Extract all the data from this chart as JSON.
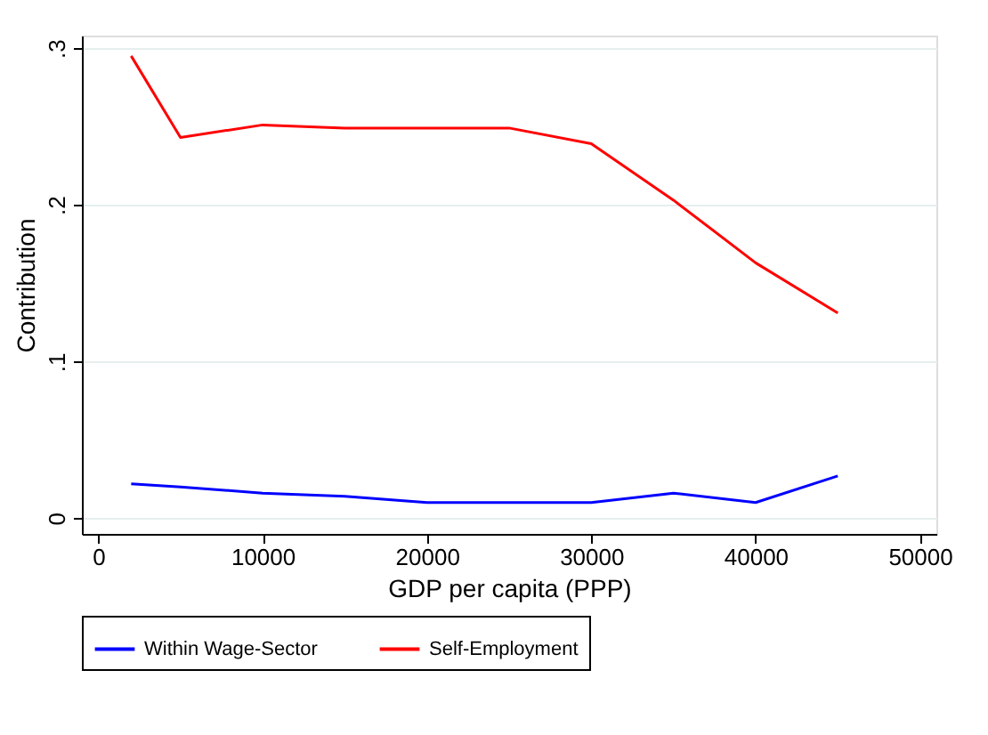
{
  "chart_data": {
    "type": "line",
    "xlabel": "GDP per capita (PPP)",
    "ylabel": "Contribution",
    "x": [
      2000,
      5000,
      10000,
      15000,
      20000,
      25000,
      30000,
      35000,
      40000,
      45000
    ],
    "series": [
      {
        "name": "Within Wage-Sector",
        "color": "#0000ff",
        "values": [
          0.022,
          0.02,
          0.016,
          0.014,
          0.01,
          0.01,
          0.01,
          0.016,
          0.01,
          0.027
        ]
      },
      {
        "name": "Self-Employment",
        "color": "#ff0000",
        "values": [
          0.295,
          0.243,
          0.251,
          0.249,
          0.249,
          0.249,
          0.239,
          0.203,
          0.163,
          0.131
        ]
      }
    ],
    "xlim": [
      -1000,
      51000
    ],
    "xticks": [
      0,
      10000,
      20000,
      30000,
      40000,
      50000
    ],
    "ylim": [
      -0.01,
      0.308
    ],
    "yticks": [
      {
        "value": 0,
        "label": "0"
      },
      {
        "value": 0.1,
        "label": ".1"
      },
      {
        "value": 0.2,
        "label": ".2"
      },
      {
        "value": 0.3,
        "label": ".3"
      }
    ],
    "grid": "y",
    "legend": "bottom",
    "marker": "none",
    "line_style": "solid"
  }
}
